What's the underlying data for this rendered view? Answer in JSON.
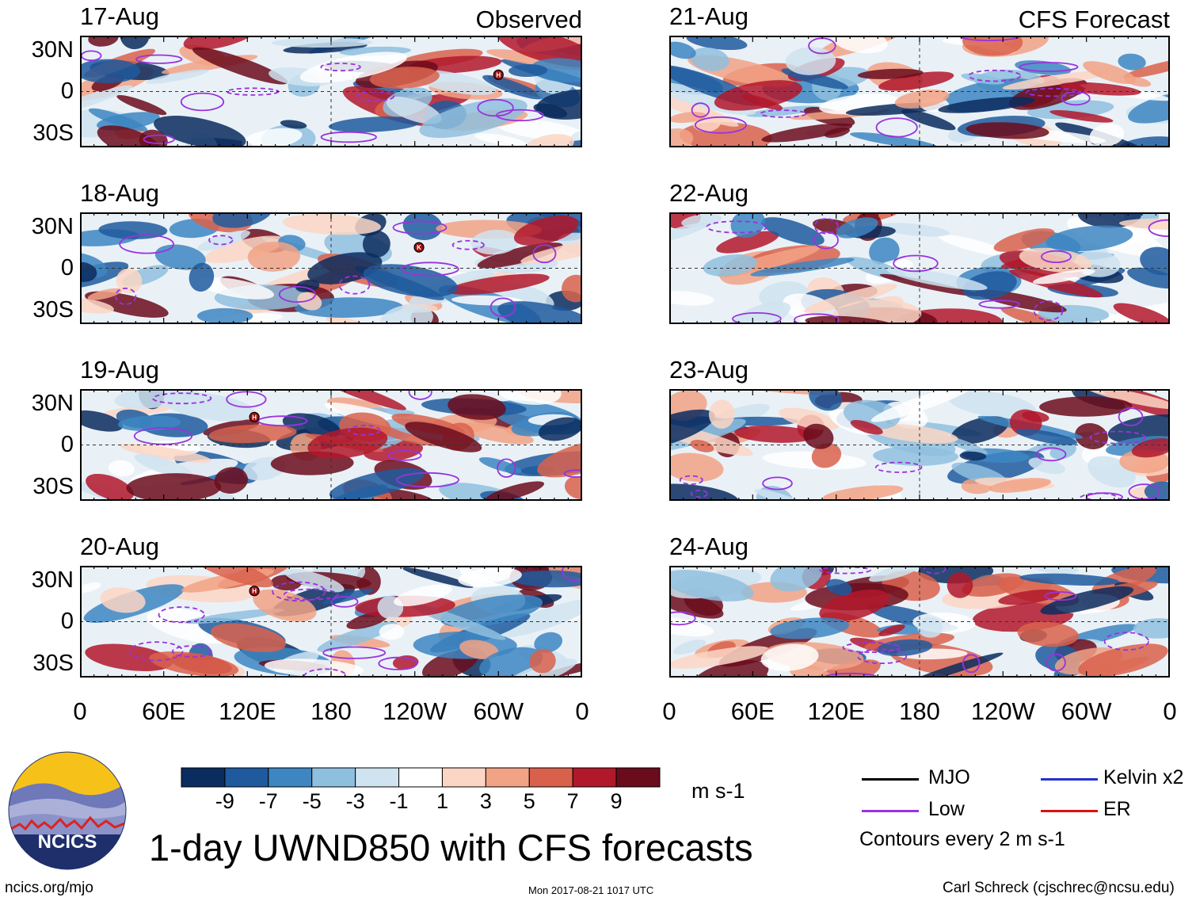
{
  "title": "1-day UWND850 with CFS forecasts",
  "source_url": "ncics.org/mjo",
  "timestamp": "Mon 2017-08-21 1017 UTC",
  "author": "Carl Schreck (cjschrec@ncsu.edu)",
  "logo_text": "NCICS",
  "observed_label": "Observed",
  "forecast_label": "CFS Forecast",
  "lat_ticks": [
    "30N",
    "0",
    "30S"
  ],
  "lon_ticks": [
    "0",
    "60E",
    "120E",
    "180",
    "120W",
    "60W",
    "0"
  ],
  "units": "m s-1",
  "contour_note": "Contours every 2 m s-1",
  "legend": [
    {
      "label": "MJO",
      "color": "#000000"
    },
    {
      "label": "Kelvin x2",
      "color": "#2233cc"
    },
    {
      "label": "Low",
      "color": "#9933dd"
    },
    {
      "label": "ER",
      "color": "#dd1111"
    }
  ],
  "colorbar": {
    "colors": [
      "#0b2c5e",
      "#1f5a9e",
      "#3d86c2",
      "#8fbfde",
      "#cfe3f0",
      "#ffffff",
      "#fbd6c4",
      "#f2a285",
      "#d9614c",
      "#b2182b",
      "#6b0c1c"
    ],
    "labels": [
      "-9",
      "-7",
      "-5",
      "-3",
      "-1",
      "1",
      "3",
      "5",
      "7",
      "9"
    ]
  },
  "chart_data": {
    "type": "heatmap",
    "variable": "UWND850",
    "description_units": "m s-1",
    "xlim": [
      0,
      360
    ],
    "ylim": [
      -40,
      40
    ],
    "panels": [
      {
        "date": "17-Aug",
        "kind": "observed",
        "markers": [
          {
            "label": "H",
            "lon": 300,
            "lat": 12
          }
        ]
      },
      {
        "date": "18-Aug",
        "kind": "observed",
        "markers": [
          {
            "label": "K",
            "lon": 243,
            "lat": 15
          }
        ]
      },
      {
        "date": "19-Aug",
        "kind": "observed",
        "markers": [
          {
            "label": "H",
            "lon": 125,
            "lat": 20
          }
        ]
      },
      {
        "date": "20-Aug",
        "kind": "observed",
        "markers": [
          {
            "label": "H",
            "lon": 125,
            "lat": 22
          }
        ]
      },
      {
        "date": "21-Aug",
        "kind": "forecast",
        "markers": []
      },
      {
        "date": "22-Aug",
        "kind": "forecast",
        "markers": []
      },
      {
        "date": "23-Aug",
        "kind": "forecast",
        "markers": []
      },
      {
        "date": "24-Aug",
        "kind": "forecast",
        "markers": []
      }
    ]
  }
}
